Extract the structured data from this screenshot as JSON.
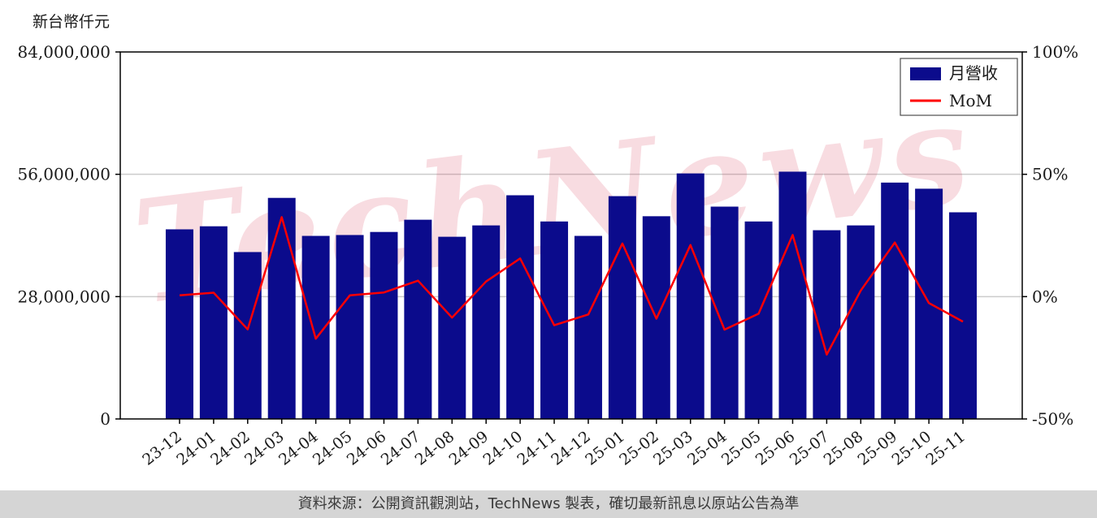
{
  "page": {
    "axis_title": "新台幣仟元",
    "footer": "資料來源：公開資訊觀測站，TechNews 製表，確切最新訊息以原站公告為準",
    "watermark": "TechNews",
    "colors": {
      "bar": "#0b0b8c",
      "line": "#ff0000",
      "grid": "#cccccc",
      "axis": "#000000",
      "text": "#1a1a1a",
      "footer_bg": "#d5d5d5",
      "watermark": "rgba(214,40,70,0.16)"
    }
  },
  "chart_data": {
    "type": "bar+line",
    "title": "",
    "categories": [
      "23-12",
      "24-01",
      "24-02",
      "24-03",
      "24-04",
      "24-05",
      "24-06",
      "24-07",
      "24-08",
      "24-09",
      "24-10",
      "24-11",
      "24-12",
      "25-01",
      "25-02",
      "25-03",
      "25-04",
      "25-05",
      "25-06",
      "25-07",
      "25-08",
      "25-09",
      "25-10",
      "25-11"
    ],
    "series": [
      {
        "name": "月營收",
        "type": "bar",
        "axis": "left",
        "color": "#0b0b8c",
        "values": [
          43400000,
          44100000,
          38200000,
          50600000,
          41900000,
          42100000,
          42800000,
          45600000,
          41700000,
          44300000,
          51200000,
          45200000,
          41900000,
          51000000,
          46400000,
          56200000,
          48600000,
          45200000,
          56600000,
          43200000,
          44300000,
          54100000,
          52700000,
          47300000
        ]
      },
      {
        "name": "MoM",
        "type": "line",
        "axis": "right",
        "color": "#ff0000",
        "values": [
          0.5,
          1.6,
          -13.4,
          32.5,
          -17.2,
          0.5,
          1.7,
          6.5,
          -8.6,
          6.2,
          15.6,
          -11.7,
          -7.3,
          21.7,
          -9.0,
          21.1,
          -13.5,
          -7.0,
          25.2,
          -23.7,
          2.5,
          22.1,
          -2.6,
          -10.2
        ]
      }
    ],
    "left_axis": {
      "label": "新台幣仟元",
      "min": 0,
      "max": 84000000,
      "ticks": [
        0,
        28000000,
        56000000,
        84000000
      ],
      "tick_labels": [
        "0",
        "28,000,000",
        "56,000,000",
        "84,000,000"
      ]
    },
    "right_axis": {
      "min": -50,
      "max": 100,
      "ticks": [
        -50,
        0,
        50,
        100
      ],
      "tick_labels": [
        "-50%",
        "0%",
        "50%",
        "100%"
      ]
    },
    "legend": {
      "position": "top-right",
      "entries": [
        "月營收",
        "MoM"
      ]
    },
    "grid": true
  }
}
